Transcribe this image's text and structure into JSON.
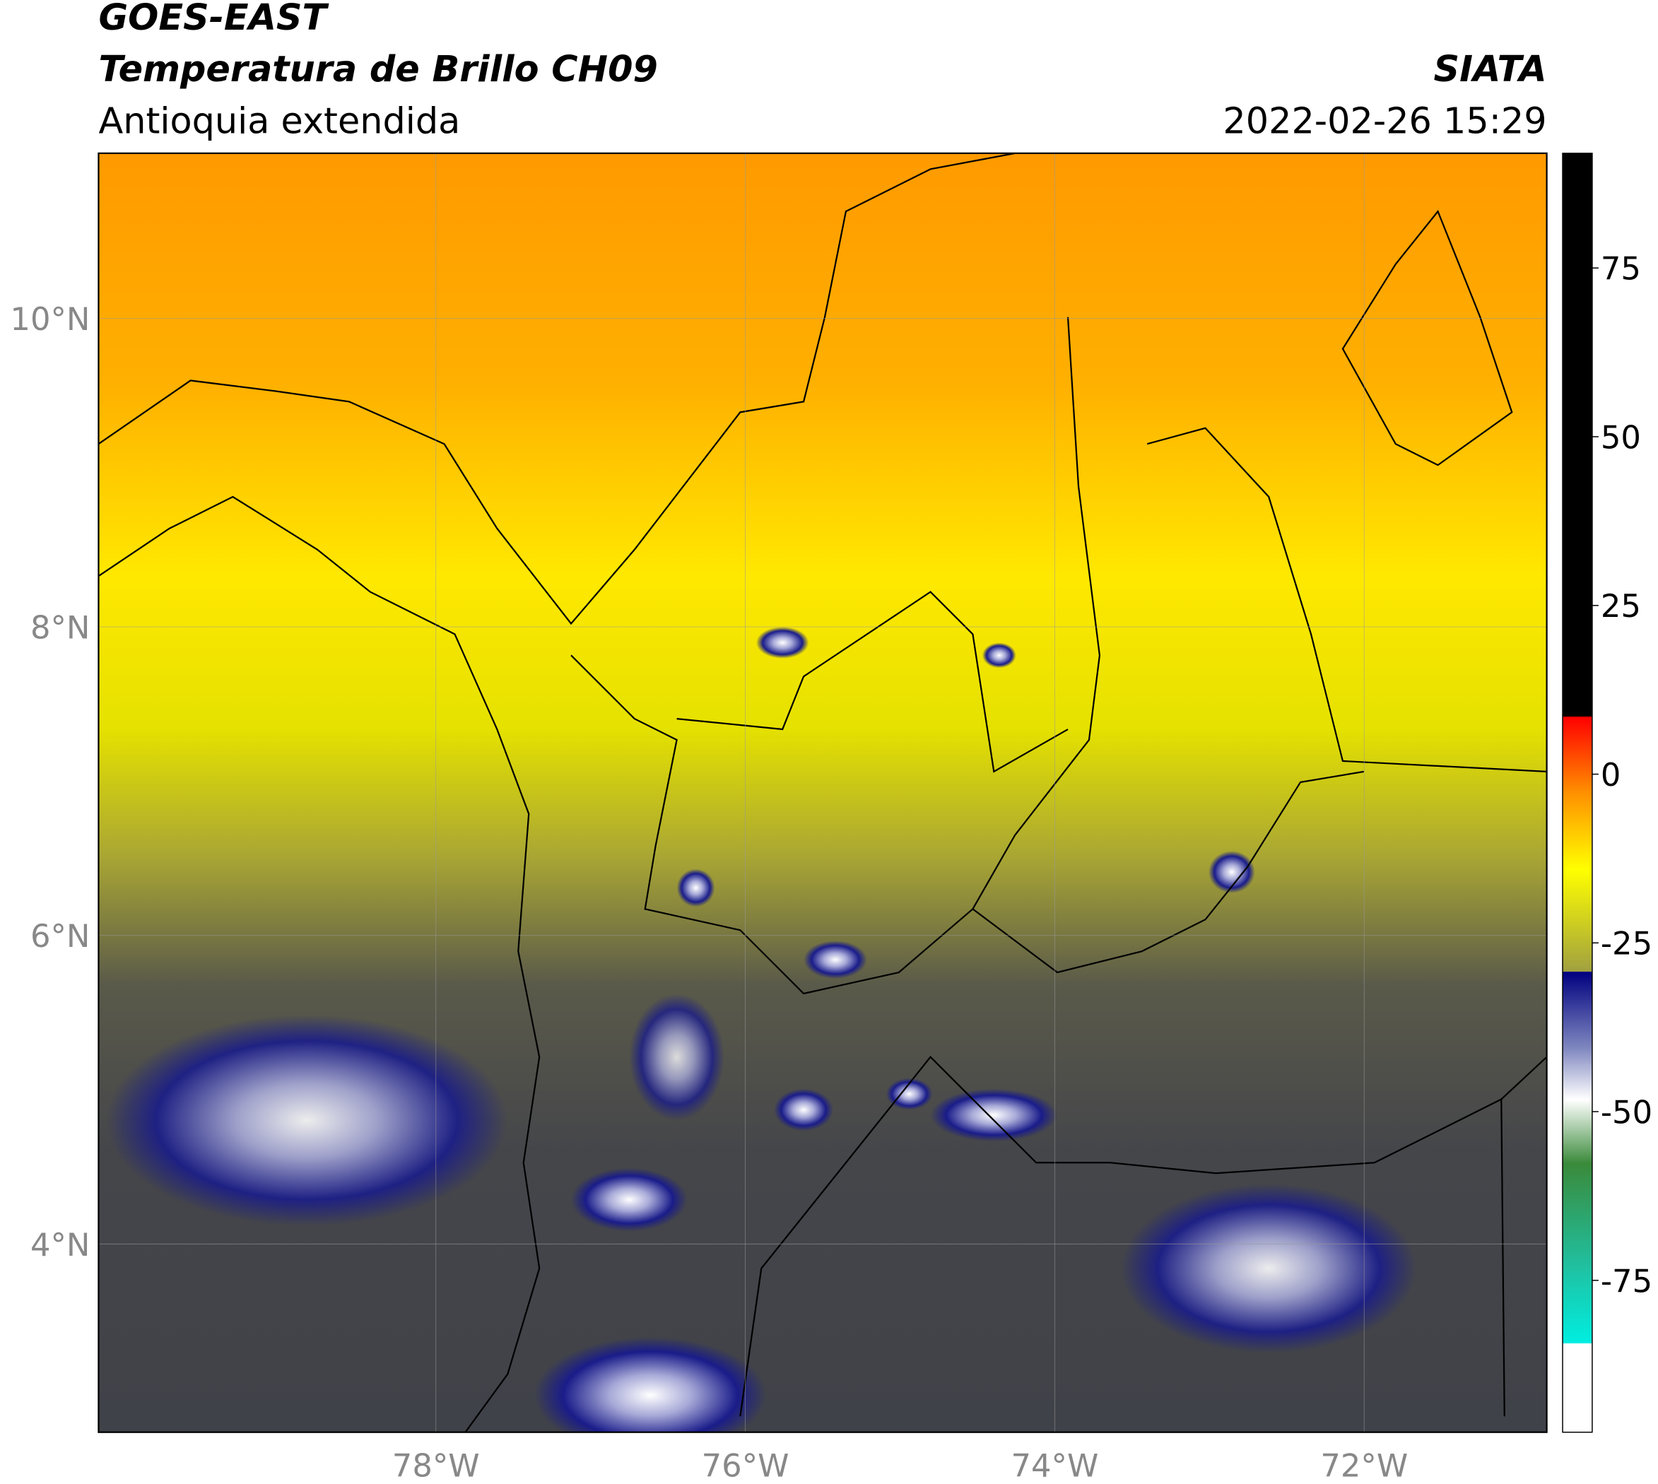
{
  "header": {
    "title": "GOES-EAST",
    "subtitle": "Temperatura de Brillo CH09",
    "region": "Antioquia extendida",
    "source": "SIATA",
    "datetime": "2022-02-26 15:29"
  },
  "map": {
    "xlim": [
      -80.18,
      -70.82
    ],
    "ylim": [
      2.78,
      11.07
    ],
    "xticks": [
      {
        "value": -78,
        "label": "78°W"
      },
      {
        "value": -76,
        "label": "76°W"
      },
      {
        "value": -74,
        "label": "74°W"
      },
      {
        "value": -72,
        "label": "72°W"
      }
    ],
    "yticks": [
      {
        "value": 10,
        "label": "10°N"
      },
      {
        "value": 8,
        "label": "8°N"
      },
      {
        "value": 6,
        "label": "6°N"
      },
      {
        "value": 4,
        "label": "4°N"
      }
    ],
    "grid": true
  },
  "colorbar": {
    "lim": [
      -97.5,
      92
    ],
    "ticks": [
      75,
      50,
      25,
      0,
      -25,
      -50,
      -75
    ]
  }
}
